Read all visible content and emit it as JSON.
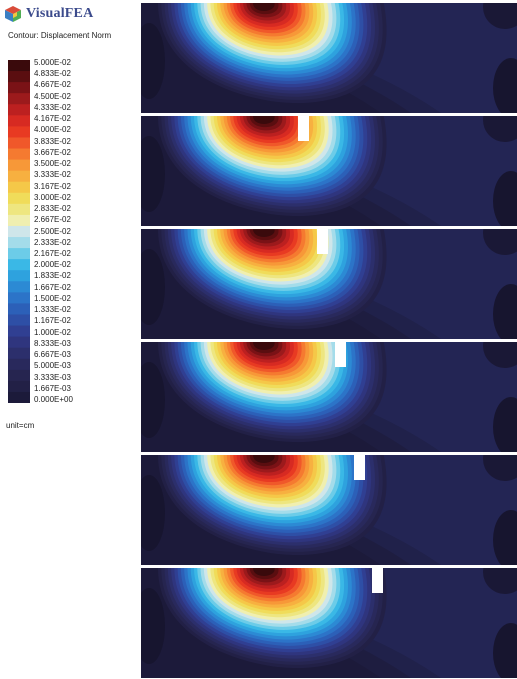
{
  "app": {
    "logo_text": "VisualFEA",
    "logo_icon": "visualfea-cube-icon"
  },
  "legend": {
    "title": "Contour: Displacement Norm",
    "unit": "unit=cm",
    "labels": [
      "5.000E-02",
      "4.833E-02",
      "4.667E-02",
      "4.500E-02",
      "4.333E-02",
      "4.167E-02",
      "4.000E-02",
      "3.833E-02",
      "3.667E-02",
      "3.500E-02",
      "3.333E-02",
      "3.167E-02",
      "3.000E-02",
      "2.833E-02",
      "2.667E-02",
      "2.500E-02",
      "2.333E-02",
      "2.167E-02",
      "2.000E-02",
      "1.833E-02",
      "1.667E-02",
      "1.500E-02",
      "1.333E-02",
      "1.167E-02",
      "1.000E-02",
      "8.333E-03",
      "6.667E-03",
      "5.000E-03",
      "3.333E-03",
      "1.667E-03",
      "0.000E+00"
    ],
    "colors": [
      "#3a0a0c",
      "#5a0e10",
      "#7a1216",
      "#9c1a1c",
      "#bc2020",
      "#d72a22",
      "#e83a22",
      "#f0582a",
      "#f57a30",
      "#f79838",
      "#f7b040",
      "#f5c848",
      "#f0dc5a",
      "#eee680",
      "#f0efb0",
      "#cfe6ea",
      "#a4dcea",
      "#6ccce8",
      "#3ab8e6",
      "#2ea2de",
      "#2c8ad4",
      "#2c74c8",
      "#2c60b8",
      "#2e4fa6",
      "#303f92",
      "#2f357e",
      "#2c2f6c",
      "#29295c",
      "#262550",
      "#222046",
      "#1c1a3a"
    ]
  },
  "frames": [
    {
      "indenter_position": 0.0
    },
    {
      "indenter_position": 0.2
    },
    {
      "indenter_position": 0.4
    },
    {
      "indenter_position": 0.6
    },
    {
      "indenter_position": 0.8
    },
    {
      "indenter_position": 1.0
    }
  ]
}
